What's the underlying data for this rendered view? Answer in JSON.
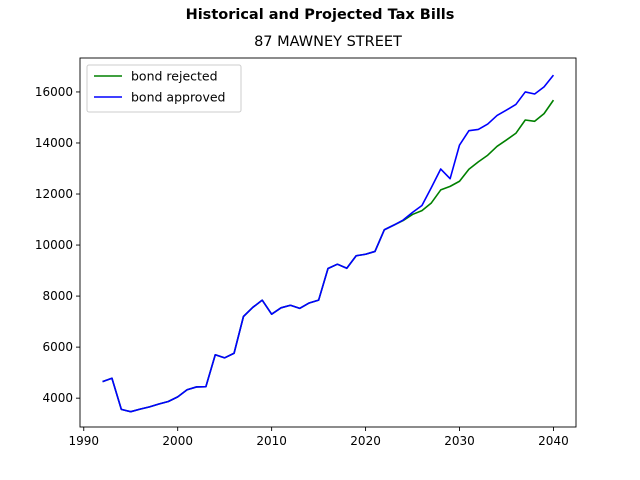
{
  "figure": {
    "suptitle": "Historical and Projected Tax Bills",
    "title": "87 MAWNEY STREET"
  },
  "chart_data": {
    "type": "line",
    "title": "87 MAWNEY STREET",
    "xlabel": "",
    "ylabel": "",
    "xlim": [
      1989.6,
      2042.4
    ],
    "ylim": [
      2870,
      17330
    ],
    "x_ticks": [
      1990,
      2000,
      2010,
      2020,
      2030,
      2040
    ],
    "y_ticks": [
      4000,
      6000,
      8000,
      10000,
      12000,
      14000,
      16000
    ],
    "legend_position": "upper-left",
    "grid": false,
    "series": [
      {
        "name": "bond rejected",
        "color": "#008000",
        "x": [
          1992,
          1993,
          1994,
          1995,
          1996,
          1997,
          1998,
          1999,
          2000,
          2001,
          2002,
          2003,
          2004,
          2005,
          2006,
          2007,
          2008,
          2009,
          2010,
          2011,
          2012,
          2013,
          2014,
          2015,
          2016,
          2017,
          2018,
          2019,
          2020,
          2021,
          2022,
          2023,
          2024,
          2025,
          2026,
          2027,
          2028,
          2029,
          2030,
          2031,
          2032,
          2033,
          2034,
          2035,
          2036,
          2037,
          2038,
          2039,
          2040
        ],
        "y": [
          4650,
          4780,
          3560,
          3470,
          3570,
          3660,
          3770,
          3870,
          4050,
          4330,
          4440,
          4450,
          5700,
          5580,
          5760,
          7200,
          7560,
          7840,
          7290,
          7540,
          7640,
          7520,
          7730,
          7840,
          9080,
          9250,
          9090,
          9580,
          9640,
          9750,
          10600,
          10780,
          10960,
          11200,
          11350,
          11650,
          12160,
          12300,
          12500,
          12970,
          13260,
          13520,
          13870,
          14120,
          14380,
          14900,
          14850,
          15150,
          15680
        ]
      },
      {
        "name": "bond approved",
        "color": "#0000ff",
        "x": [
          1992,
          1993,
          1994,
          1995,
          1996,
          1997,
          1998,
          1999,
          2000,
          2001,
          2002,
          2003,
          2004,
          2005,
          2006,
          2007,
          2008,
          2009,
          2010,
          2011,
          2012,
          2013,
          2014,
          2015,
          2016,
          2017,
          2018,
          2019,
          2020,
          2021,
          2022,
          2023,
          2024,
          2025,
          2026,
          2027,
          2028,
          2029,
          2030,
          2031,
          2032,
          2033,
          2034,
          2035,
          2036,
          2037,
          2038,
          2039,
          2040
        ],
        "y": [
          4650,
          4780,
          3560,
          3470,
          3570,
          3660,
          3770,
          3870,
          4050,
          4330,
          4440,
          4450,
          5700,
          5580,
          5760,
          7200,
          7560,
          7840,
          7290,
          7540,
          7640,
          7520,
          7730,
          7840,
          9080,
          9250,
          9090,
          9580,
          9640,
          9750,
          10600,
          10780,
          10980,
          11280,
          11550,
          12250,
          12980,
          12600,
          13920,
          14480,
          14530,
          14740,
          15080,
          15290,
          15510,
          16000,
          15920,
          16200,
          16660
        ]
      }
    ]
  }
}
